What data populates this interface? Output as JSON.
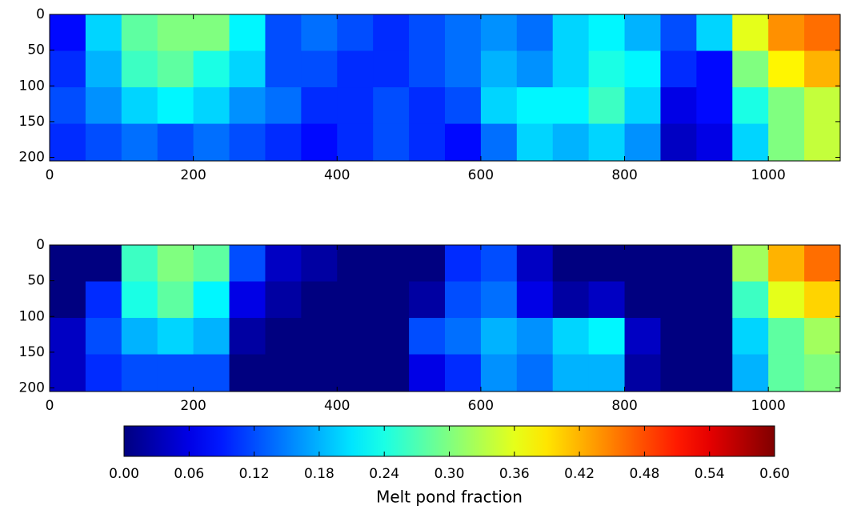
{
  "chart_data": [
    {
      "type": "heatmap",
      "xbins": [
        0,
        50,
        100,
        150,
        200,
        250,
        300,
        350,
        400,
        450,
        500,
        550,
        600,
        650,
        700,
        750,
        800,
        850,
        900,
        950,
        1000,
        1050,
        1100
      ],
      "ybins": [
        0,
        51,
        102,
        153,
        205
      ],
      "xlim": [
        0,
        1100
      ],
      "ylim": [
        205,
        0
      ],
      "xticks": [
        0,
        200,
        400,
        600,
        800,
        1000
      ],
      "yticks": [
        0,
        50,
        100,
        150,
        200
      ],
      "values": [
        [
          0.08,
          0.2,
          0.28,
          0.3,
          0.3,
          0.22,
          0.12,
          0.14,
          0.12,
          0.1,
          0.12,
          0.14,
          0.16,
          0.14,
          0.2,
          0.22,
          0.18,
          0.12,
          0.2,
          0.36,
          0.44,
          0.46
        ],
        [
          0.1,
          0.18,
          0.26,
          0.28,
          0.24,
          0.2,
          0.12,
          0.12,
          0.1,
          0.1,
          0.12,
          0.14,
          0.18,
          0.16,
          0.2,
          0.24,
          0.22,
          0.1,
          0.08,
          0.3,
          0.38,
          0.42
        ],
        [
          0.12,
          0.16,
          0.2,
          0.22,
          0.2,
          0.16,
          0.14,
          0.1,
          0.1,
          0.12,
          0.1,
          0.12,
          0.2,
          0.22,
          0.22,
          0.26,
          0.2,
          0.06,
          0.08,
          0.24,
          0.3,
          0.34
        ],
        [
          0.1,
          0.12,
          0.14,
          0.12,
          0.14,
          0.12,
          0.1,
          0.08,
          0.1,
          0.12,
          0.1,
          0.08,
          0.14,
          0.2,
          0.18,
          0.2,
          0.16,
          0.04,
          0.06,
          0.2,
          0.3,
          0.34
        ]
      ]
    },
    {
      "type": "heatmap",
      "xbins": [
        0,
        50,
        100,
        150,
        200,
        250,
        300,
        350,
        400,
        450,
        500,
        550,
        600,
        650,
        700,
        750,
        800,
        850,
        900,
        950,
        1000,
        1050,
        1100
      ],
      "ybins": [
        0,
        51,
        102,
        153,
        205
      ],
      "xlim": [
        0,
        1100
      ],
      "ylim": [
        205,
        0
      ],
      "xticks": [
        0,
        200,
        400,
        600,
        800,
        1000
      ],
      "yticks": [
        0,
        50,
        100,
        150,
        200
      ],
      "values": [
        [
          0,
          0,
          0.26,
          0.3,
          0.28,
          0.12,
          0.04,
          0.02,
          0,
          0,
          0,
          0.1,
          0.12,
          0.04,
          0,
          0,
          0,
          0,
          0,
          0.32,
          0.42,
          0.46
        ],
        [
          0,
          0.1,
          0.24,
          0.28,
          0.22,
          0.06,
          0.02,
          0,
          0,
          0,
          0.02,
          0.12,
          0.14,
          0.06,
          0.02,
          0.04,
          0,
          0,
          0,
          0.26,
          0.36,
          0.4
        ],
        [
          0.04,
          0.12,
          0.18,
          0.2,
          0.18,
          0.02,
          0,
          0,
          0,
          0,
          0.12,
          0.14,
          0.18,
          0.16,
          0.2,
          0.22,
          0.04,
          0,
          0,
          0.2,
          0.28,
          0.32
        ],
        [
          0.04,
          0.1,
          0.12,
          0.12,
          0.12,
          0,
          0,
          0,
          0,
          0,
          0.06,
          0.1,
          0.16,
          0.14,
          0.18,
          0.18,
          0.02,
          0,
          0,
          0.18,
          0.28,
          0.3
        ]
      ]
    },
    {
      "type": "colorbar",
      "colormap": "jet",
      "clim": [
        0,
        0.6
      ],
      "ticks": [
        {
          "value": 0,
          "label": "0.00"
        },
        0.06,
        0.12,
        0.18,
        0.24,
        {
          "value": 0.3,
          "label": "0.30"
        },
        0.36,
        0.42,
        0.48,
        0.54,
        {
          "value": 0.6,
          "label": "0.60"
        }
      ],
      "label": "Melt pond fraction"
    }
  ]
}
